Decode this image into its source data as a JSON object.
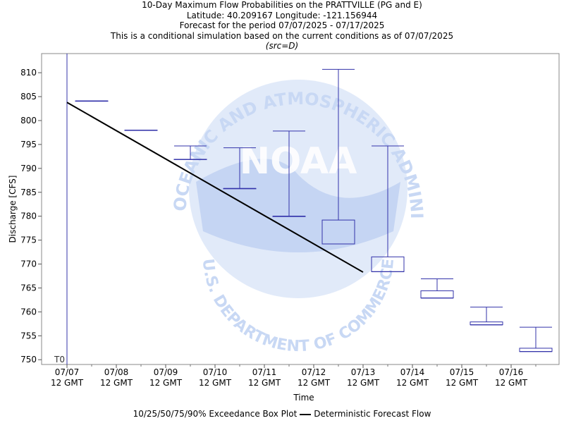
{
  "header": {
    "title_line1": "10-Day Maximum Flow Probabilities on the PRATTVILLE (PG and E)",
    "title_line2": "Latitude: 40.209167 Longitude: -121.156944",
    "title_line3": "Forecast for the period 07/07/2025 - 07/17/2025",
    "title_line4": "This is a conditional simulation based on the current conditions as of 07/07/2025",
    "title_line5": "(src=D)"
  },
  "watermark": {
    "logo_text": "NOAA",
    "ring_text_top": "NATIONAL OCEANIC AND ATMOSPHERIC ADMINISTRATION",
    "ring_text_bottom": "U.S. DEPARTMENT OF COMMERCE",
    "color": "#c8d8f4"
  },
  "legend": {
    "box_label": "10/25/50/75/90% Exceedance Box Plot",
    "line_label": "Deterministic Forecast Flow"
  },
  "colors": {
    "box": "#3333aa",
    "deterministic": "#000000",
    "t0_line": "#3333aa"
  },
  "chart_data": {
    "type": "box",
    "xlabel": "Time",
    "ylabel": "Discharge [CFS]",
    "ylim": [
      749,
      814
    ],
    "yticks": [
      750,
      755,
      760,
      765,
      770,
      775,
      780,
      785,
      790,
      795,
      800,
      805,
      810
    ],
    "xticks": [
      {
        "day": 0,
        "line1": "07/07",
        "line2": "12 GMT"
      },
      {
        "day": 1,
        "line1": "07/08",
        "line2": "12 GMT"
      },
      {
        "day": 2,
        "line1": "07/09",
        "line2": "12 GMT"
      },
      {
        "day": 3,
        "line1": "07/10",
        "line2": "12 GMT"
      },
      {
        "day": 4,
        "line1": "07/11",
        "line2": "12 GMT"
      },
      {
        "day": 5,
        "line1": "07/12",
        "line2": "12 GMT"
      },
      {
        "day": 6,
        "line1": "07/13",
        "line2": "12 GMT"
      },
      {
        "day": 7,
        "line1": "07/14",
        "line2": "12 GMT"
      },
      {
        "day": 8,
        "line1": "07/15",
        "line2": "12 GMT"
      },
      {
        "day": 9,
        "line1": "07/16",
        "line2": "12 GMT"
      }
    ],
    "t0_label": "T0",
    "boxes": [
      {
        "p10": 804.1,
        "p25": 804.1,
        "p50": 804.1,
        "p75": 804.1,
        "p90": 804.1
      },
      {
        "p10": 798.0,
        "p25": 798.0,
        "p50": 798.0,
        "p75": 798.0,
        "p90": 798.0
      },
      {
        "p10": 791.9,
        "p25": 791.9,
        "p50": 791.9,
        "p75": 791.9,
        "p90": 794.7
      },
      {
        "p10": 785.8,
        "p25": 785.8,
        "p50": 785.8,
        "p75": 785.8,
        "p90": 794.3
      },
      {
        "p10": 780.0,
        "p25": 780.0,
        "p50": 780.0,
        "p75": 780.0,
        "p90": 797.8
      },
      {
        "p10": 774.2,
        "p25": 774.2,
        "p50": 774.2,
        "p75": 779.2,
        "p90": 810.7
      },
      {
        "p10": 768.4,
        "p25": 768.4,
        "p50": 768.4,
        "p75": 771.5,
        "p90": 794.7
      },
      {
        "p10": 762.9,
        "p25": 762.9,
        "p50": 762.9,
        "p75": 764.4,
        "p90": 766.9
      },
      {
        "p10": 757.3,
        "p25": 757.3,
        "p50": 757.3,
        "p75": 757.9,
        "p90": 761.0
      },
      {
        "p10": 751.7,
        "p25": 751.7,
        "p50": 751.7,
        "p75": 752.4,
        "p90": 756.8
      }
    ],
    "deterministic": {
      "x_days": [
        0,
        6
      ],
      "y": [
        803.8,
        768.3
      ]
    },
    "grid": false
  }
}
